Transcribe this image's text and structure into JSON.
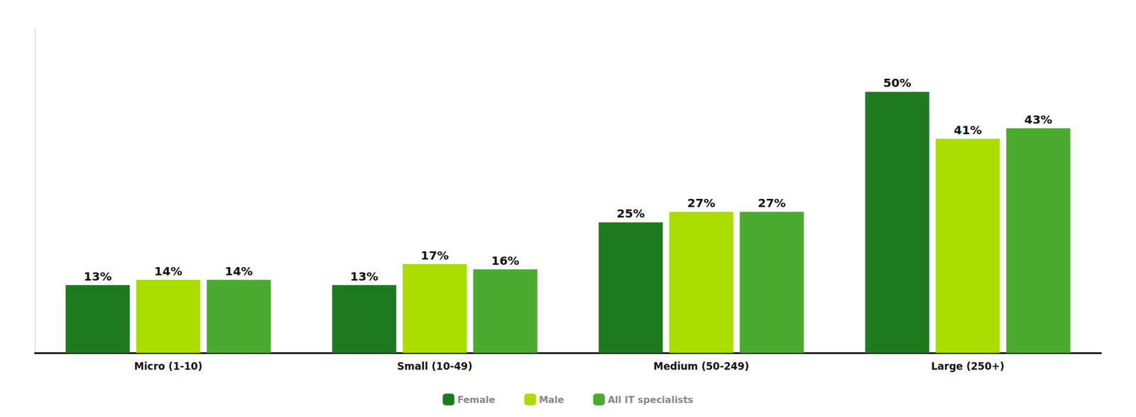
{
  "chart_data": {
    "type": "bar",
    "categories": [
      "Micro (1-10)",
      "Small (10-49)",
      "Medium (50-249)",
      "Large (250+)"
    ],
    "series": [
      {
        "name": "Female",
        "color": "#1e7a1e",
        "values": [
          13,
          13,
          25,
          50
        ],
        "value_labels": [
          "13%",
          "13%",
          "25%",
          "50%"
        ]
      },
      {
        "name": "Male",
        "color": "#aadd00",
        "values": [
          14,
          17,
          27,
          41
        ],
        "value_labels": [
          "14%",
          "17%",
          "27%",
          "41%"
        ]
      },
      {
        "name": "All IT specialists",
        "color": "#4aaa30",
        "values": [
          14,
          16,
          27,
          43
        ],
        "value_labels": [
          "14%",
          "16%",
          "27%",
          "43%"
        ]
      }
    ],
    "ylim": [
      0,
      62
    ],
    "grid": false,
    "legend": "bottom",
    "data_labels": true,
    "tick_labels": "x"
  }
}
